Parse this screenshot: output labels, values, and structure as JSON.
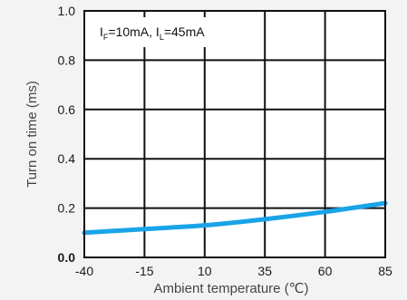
{
  "chart_data": {
    "type": "line",
    "title": "",
    "xlabel": "Ambient temperature (℃)",
    "ylabel": "Turn on time (ms)",
    "xlim": [
      -40,
      85
    ],
    "ylim": [
      0,
      1.0
    ],
    "grid": true,
    "x_ticks": [
      -40,
      -15,
      10,
      35,
      60,
      85
    ],
    "x_tick_labels": [
      "-40",
      "-15",
      "10",
      "35",
      "60",
      "85"
    ],
    "y_ticks": [
      0,
      0.2,
      0.4,
      0.6,
      0.8,
      1.0
    ],
    "y_tick_labels": [
      "0.0",
      "0.2",
      "0.4",
      "0.6",
      "0.8",
      "1.0"
    ],
    "annotation": {
      "f_main": "I",
      "f_sub": "F",
      "f_rest": "=10mA,  ",
      "l_main": "I",
      "l_sub": "L",
      "l_rest": "=45mA"
    },
    "series": [
      {
        "color": "#1aa3e8",
        "x": [
          -40,
          -15,
          10,
          35,
          60,
          85
        ],
        "y": [
          0.1,
          0.115,
          0.13,
          0.155,
          0.185,
          0.22
        ]
      }
    ]
  }
}
